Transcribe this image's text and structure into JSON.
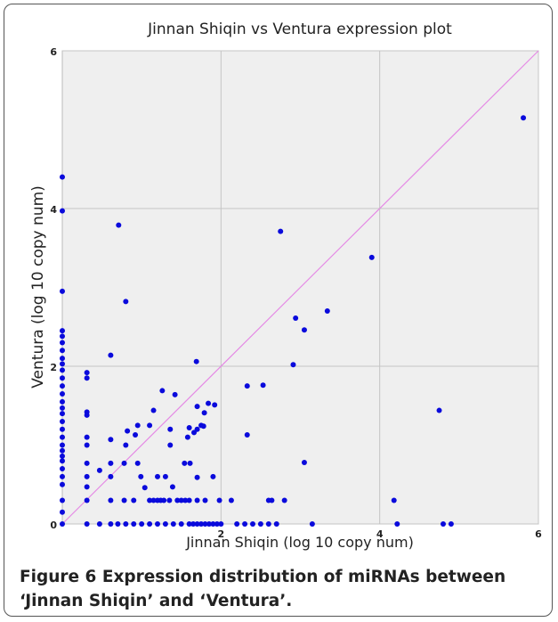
{
  "chart_data": {
    "type": "scatter",
    "title": "Jinnan Shiqin vs Ventura expression plot",
    "x_label": "Jinnan Shiqin (log 10 copy num)",
    "y_label": "Ventura (log 10 copy num)",
    "xlim": [
      0,
      6
    ],
    "ylim": [
      0,
      6
    ],
    "xticks": [
      2,
      4,
      6
    ],
    "yticks": [
      0,
      2,
      4,
      6
    ],
    "grid": true,
    "diagonal_color": "#e58ae5",
    "series": [
      {
        "name": "miRNA",
        "color": "#0a0adc",
        "x": [
          0,
          0,
          0,
          0,
          0,
          0,
          0,
          0,
          0,
          0,
          0,
          0,
          0,
          0,
          0,
          0,
          0,
          0,
          0,
          0,
          0,
          0,
          0,
          0,
          0,
          0,
          0,
          0,
          0,
          0.31,
          0.31,
          0.31,
          0.31,
          0.31,
          0.31,
          0.31,
          0.31,
          0.31,
          0.31,
          0.31,
          0.71,
          0.8,
          0.61,
          0.47,
          0.61,
          0.61,
          0.61,
          0.61,
          0.8,
          0.82,
          0.78,
          0.92,
          0.95,
          0.95,
          0.99,
          1.04,
          1.1,
          1.15,
          1.26,
          1.2,
          1.36,
          1.36,
          1.42,
          1.24,
          1.3,
          1.39,
          1.54,
          1.58,
          1.6,
          1.61,
          1.66,
          1.69,
          1.7,
          1.7,
          1.75,
          1.79,
          1.84,
          1.92,
          1.78,
          1.7,
          1.9,
          1.98,
          2.13,
          2.33,
          2.33,
          2.53,
          2.75,
          2.91,
          2.94,
          3.05,
          3.05,
          3.34,
          3.9,
          4.18,
          4.75,
          5.81,
          2.8,
          2.6,
          2.64,
          0.78,
          0.9,
          1.1,
          1.15,
          1.2,
          1.28,
          1.35,
          1.45,
          1.5,
          1.55,
          1.6,
          1.7,
          1.8,
          0.47,
          0.61,
          0.7,
          0.8,
          0.9,
          1.0,
          1.1,
          1.2,
          1.3,
          1.4,
          1.5,
          1.6,
          1.65,
          1.7,
          1.75,
          1.8,
          1.85,
          1.9,
          1.95,
          2.0,
          2.2,
          2.3,
          2.4,
          2.5,
          2.6,
          2.7,
          3.15,
          4.22,
          4.8,
          4.9
        ],
        "values": [
          4.4,
          3.97,
          2.95,
          2.45,
          2.38,
          2.3,
          2.2,
          2.1,
          2.03,
          1.95,
          1.85,
          1.75,
          1.65,
          1.55,
          1.47,
          1.4,
          1.3,
          1.2,
          1.1,
          1.0,
          0.93,
          0.86,
          0.8,
          0.7,
          0.6,
          0.5,
          0.3,
          0.15,
          0,
          1.92,
          1.85,
          1.42,
          1.38,
          1.1,
          1.0,
          0.77,
          0.6,
          0.47,
          0.3,
          0,
          3.79,
          2.82,
          2.14,
          0.68,
          1.07,
          0.6,
          0.77,
          0.3,
          1.0,
          1.18,
          0.77,
          1.13,
          1.25,
          0.77,
          0.6,
          0.46,
          1.25,
          1.44,
          1.69,
          0.6,
          1.2,
          1.0,
          1.64,
          0.3,
          0.6,
          0.47,
          0.77,
          1.1,
          1.22,
          0.77,
          1.16,
          2.06,
          1.49,
          1.2,
          1.25,
          1.41,
          1.53,
          1.51,
          1.24,
          0.59,
          0.6,
          0.3,
          0.3,
          1.75,
          1.13,
          1.76,
          3.71,
          2.02,
          2.61,
          2.46,
          0.78,
          2.7,
          3.38,
          0.3,
          1.44,
          5.15,
          0.3,
          0.3,
          0.3,
          0.3,
          0.3,
          0.3,
          0.3,
          0.3,
          0.3,
          0.3,
          0.3,
          0.3,
          0.3,
          0.3,
          0.3,
          0.3,
          0,
          0,
          0,
          0,
          0,
          0,
          0,
          0,
          0,
          0,
          0,
          0,
          0,
          0,
          0,
          0,
          0,
          0,
          0,
          0,
          0,
          0,
          0,
          0,
          0,
          0,
          0,
          0,
          0,
          0
        ]
      }
    ]
  },
  "caption": "Figure 6 Expression distribution of miRNAs between ‘Jinnan Shiqin’ and ‘Ventura’."
}
